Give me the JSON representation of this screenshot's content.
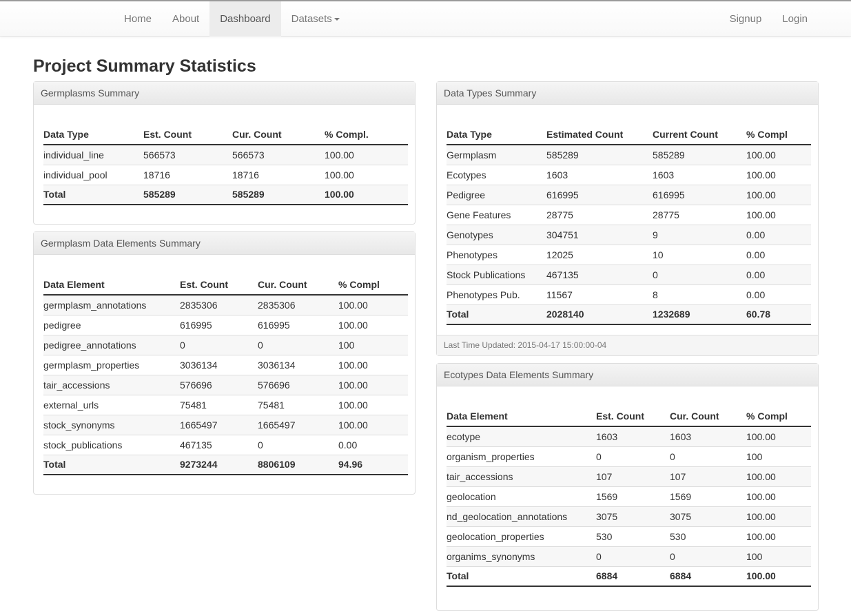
{
  "nav": {
    "left": [
      "Home",
      "About",
      "Dashboard",
      "Datasets"
    ],
    "right": [
      "Signup",
      "Login"
    ]
  },
  "page_title": "Project Summary Statistics",
  "germplasms_summary": {
    "title": "Germplasms Summary",
    "headers": [
      "Data Type",
      "Est. Count",
      "Cur. Count",
      "% Compl."
    ],
    "rows": [
      [
        "individual_line",
        "566573",
        "566573",
        "100.00"
      ],
      [
        "individual_pool",
        "18716",
        "18716",
        "100.00"
      ],
      [
        "Total",
        "585289",
        "585289",
        "100.00"
      ]
    ]
  },
  "germplasm_elements": {
    "title": "Germplasm Data Elements Summary",
    "headers": [
      "Data Element",
      "Est. Count",
      "Cur. Count",
      "% Compl"
    ],
    "rows": [
      [
        "germplasm_annotations",
        "2835306",
        "2835306",
        "100.00"
      ],
      [
        "pedigree",
        "616995",
        "616995",
        "100.00"
      ],
      [
        "pedigree_annotations",
        "0",
        "0",
        "100"
      ],
      [
        "germplasm_properties",
        "3036134",
        "3036134",
        "100.00"
      ],
      [
        "tair_accessions",
        "576696",
        "576696",
        "100.00"
      ],
      [
        "external_urls",
        "75481",
        "75481",
        "100.00"
      ],
      [
        "stock_synonyms",
        "1665497",
        "1665497",
        "100.00"
      ],
      [
        "stock_publications",
        "467135",
        "0",
        "0.00"
      ],
      [
        "Total",
        "9273244",
        "8806109",
        "94.96"
      ]
    ]
  },
  "data_types_summary": {
    "title": "Data Types Summary",
    "headers": [
      "Data Type",
      "Estimated Count",
      "Current Count",
      "% Compl"
    ],
    "rows": [
      [
        "Germplasm",
        "585289",
        "585289",
        "100.00"
      ],
      [
        "Ecotypes",
        "1603",
        "1603",
        "100.00"
      ],
      [
        "Pedigree",
        "616995",
        "616995",
        "100.00"
      ],
      [
        "Gene Features",
        "28775",
        "28775",
        "100.00"
      ],
      [
        "Genotypes",
        "304751",
        "9",
        "0.00"
      ],
      [
        "Phenotypes",
        "12025",
        "10",
        "0.00"
      ],
      [
        "Stock Publications",
        "467135",
        "0",
        "0.00"
      ],
      [
        "Phenotypes Pub.",
        "11567",
        "8",
        "0.00"
      ],
      [
        "Total",
        "2028140",
        "1232689",
        "60.78"
      ]
    ],
    "footer": "Last Time Updated: 2015-04-17 15:00:00-04"
  },
  "ecotypes_elements": {
    "title": "Ecotypes Data Elements Summary",
    "headers": [
      "Data Element",
      "Est. Count",
      "Cur. Count",
      "% Compl"
    ],
    "rows": [
      [
        "ecotype",
        "1603",
        "1603",
        "100.00"
      ],
      [
        "organism_properties",
        "0",
        "0",
        "100"
      ],
      [
        "tair_accessions",
        "107",
        "107",
        "100.00"
      ],
      [
        "geolocation",
        "1569",
        "1569",
        "100.00"
      ],
      [
        "nd_geolocation_annotations",
        "3075",
        "3075",
        "100.00"
      ],
      [
        "geolocation_properties",
        "530",
        "530",
        "100.00"
      ],
      [
        "organims_synonyms",
        "0",
        "0",
        "100"
      ],
      [
        "Total",
        "6884",
        "6884",
        "100.00"
      ]
    ]
  }
}
